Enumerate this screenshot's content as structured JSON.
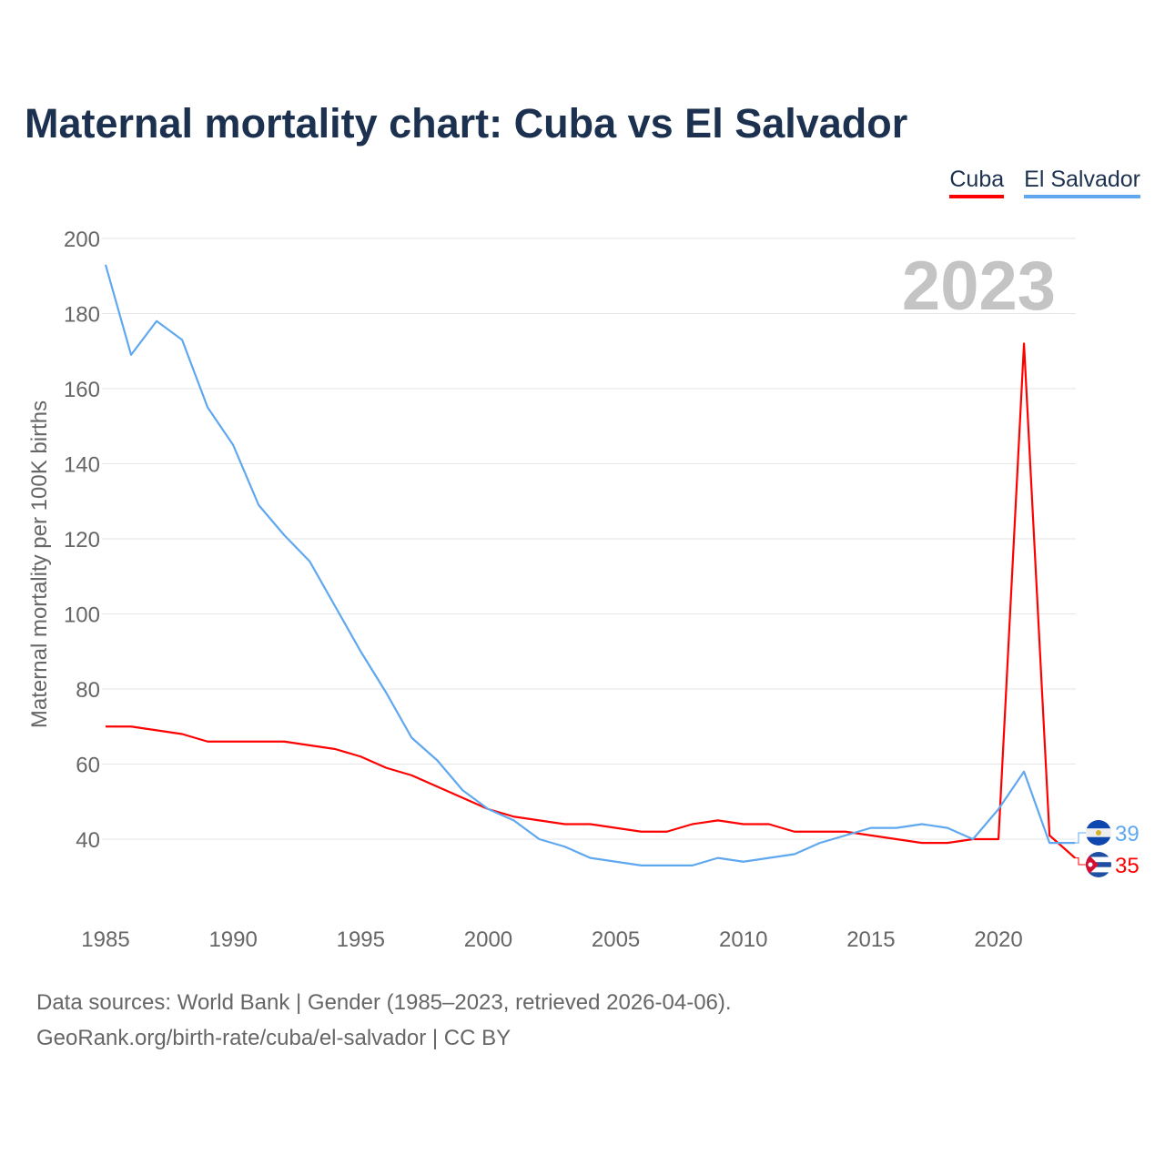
{
  "title": "Maternal mortality chart: Cuba vs El Salvador",
  "year_watermark": "2023",
  "sources": {
    "line1": "Data sources: World Bank | Gender (1985–2023, retrieved 2026-04-06).",
    "line2": "GeoRank.org/birth-rate/cuba/el-salvador | CC BY"
  },
  "chart_data": {
    "type": "line",
    "title": "Maternal mortality chart: Cuba vs El Salvador",
    "xlabel": "",
    "ylabel": "Maternal mortality per 100K births",
    "xlim": [
      1985,
      2023
    ],
    "ylim": [
      20,
      200
    ],
    "xticks": [
      1985,
      1990,
      1995,
      2000,
      2005,
      2010,
      2015,
      2020
    ],
    "yticks": [
      40,
      60,
      80,
      100,
      120,
      140,
      160,
      180,
      200
    ],
    "grid": true,
    "legend_placement": "top-right",
    "x": [
      1985,
      1986,
      1987,
      1988,
      1989,
      1990,
      1991,
      1992,
      1993,
      1994,
      1995,
      1996,
      1997,
      1998,
      1999,
      2000,
      2001,
      2002,
      2003,
      2004,
      2005,
      2006,
      2007,
      2008,
      2009,
      2010,
      2011,
      2012,
      2013,
      2014,
      2015,
      2016,
      2017,
      2018,
      2019,
      2020,
      2021,
      2022,
      2023
    ],
    "series": [
      {
        "name": "Cuba",
        "color": "#ff0000",
        "end_label": "35",
        "values": [
          70,
          70,
          69,
          68,
          66,
          66,
          66,
          66,
          65,
          64,
          62,
          59,
          57,
          54,
          51,
          48,
          46,
          45,
          44,
          44,
          43,
          42,
          42,
          44,
          45,
          44,
          44,
          42,
          42,
          42,
          41,
          40,
          39,
          39,
          40,
          40,
          172,
          41,
          35
        ]
      },
      {
        "name": "El Salvador",
        "color": "#5fa8ef",
        "end_label": "39",
        "values": [
          193,
          169,
          178,
          173,
          155,
          145,
          129,
          121,
          114,
          102,
          90,
          79,
          67,
          61,
          53,
          48,
          45,
          40,
          38,
          35,
          34,
          33,
          33,
          33,
          35,
          34,
          35,
          36,
          39,
          41,
          43,
          43,
          44,
          43,
          40,
          48,
          58,
          39,
          39
        ]
      }
    ]
  }
}
